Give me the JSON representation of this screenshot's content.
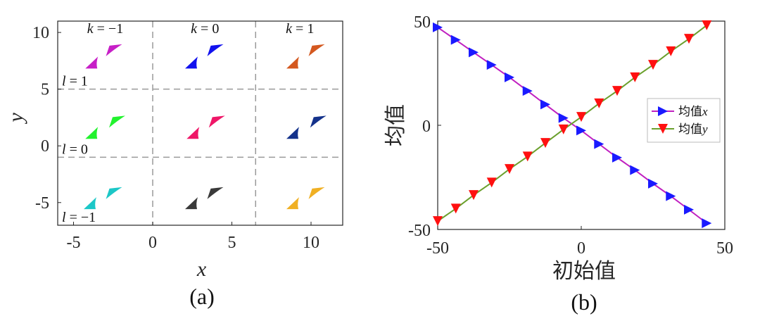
{
  "chart_data": [
    {
      "type": "scatter",
      "caption": "(a)",
      "xlabel": "x",
      "ylabel": "y",
      "xlim": [
        -6,
        12
      ],
      "ylim": [
        -7,
        11
      ],
      "xticks": [
        "-5",
        "0",
        "5",
        "10"
      ],
      "yticks": [
        "-5",
        "0",
        "5",
        "10"
      ],
      "col_labels": [
        "k = −1",
        "k = 0",
        "k = 1"
      ],
      "row_labels": [
        "l = 1",
        "l = 0",
        "l = −1"
      ],
      "vlines": [
        0,
        6.5
      ],
      "hlines": [
        5,
        -1
      ],
      "grid_color": "#9a9a9a",
      "cells": [
        {
          "k": -1,
          "l": 1,
          "color": "#c71fc7",
          "x": [
            -3.9,
            -2.6
          ],
          "y": [
            7.5,
            8.4
          ]
        },
        {
          "k": 0,
          "l": 1,
          "color": "#1212ee",
          "x": [
            2.4,
            3.8
          ],
          "y": [
            7.5,
            8.4
          ]
        },
        {
          "k": 1,
          "l": 1,
          "color": "#d4581f",
          "x": [
            8.8,
            10.2
          ],
          "y": [
            7.5,
            8.4
          ]
        },
        {
          "k": -1,
          "l": 0,
          "color": "#22f22e",
          "x": [
            -3.9,
            -2.4
          ],
          "y": [
            1.3,
            2.1
          ]
        },
        {
          "k": 0,
          "l": 0,
          "color": "#ef1768",
          "x": [
            2.5,
            3.9
          ],
          "y": [
            1.3,
            2.1
          ]
        },
        {
          "k": 1,
          "l": 0,
          "color": "#14328b",
          "x": [
            8.8,
            10.3
          ],
          "y": [
            1.3,
            2.1
          ]
        },
        {
          "k": -1,
          "l": -1,
          "color": "#1cc7c7",
          "x": [
            -4.0,
            -2.6
          ],
          "y": [
            -4.9,
            -4.2
          ]
        },
        {
          "k": 0,
          "l": -1,
          "color": "#3a3a3a",
          "x": [
            2.4,
            3.8
          ],
          "y": [
            -4.9,
            -4.2
          ]
        },
        {
          "k": 1,
          "l": -1,
          "color": "#f0b024",
          "x": [
            8.8,
            10.2
          ],
          "y": [
            -4.9,
            -4.2
          ]
        }
      ]
    },
    {
      "type": "line",
      "caption": "(b)",
      "xlabel": "初始值",
      "ylabel": "均值",
      "xlim": [
        -50,
        50
      ],
      "ylim": [
        -50,
        50
      ],
      "xticks": [
        "-50",
        "0",
        "50"
      ],
      "yticks": [
        "-50",
        "0",
        "50"
      ],
      "legend_position": "right",
      "series": [
        {
          "name": "均值x",
          "line_color": "#c020c0",
          "marker_color": "#1a1aff",
          "marker": "triangle-right",
          "x": [
            -50,
            -43.7,
            -37.5,
            -31.2,
            -25,
            -18.7,
            -12.5,
            -6.2,
            0,
            6.2,
            12.5,
            18.7,
            25,
            31.2,
            37.5,
            43.7
          ],
          "y": [
            47,
            41,
            35,
            29,
            23,
            16.5,
            10,
            3.5,
            -2.5,
            -9,
            -15.5,
            -21.5,
            -28,
            -34,
            -40.5,
            -47
          ]
        },
        {
          "name": "均值y",
          "line_color": "#6aa02c",
          "marker_color": "#ff1010",
          "marker": "triangle-down",
          "x": [
            -50,
            -43.7,
            -37.5,
            -31.2,
            -25,
            -18.7,
            -12.5,
            -6.2,
            0,
            6.2,
            12.5,
            18.7,
            25,
            31.2,
            37.5,
            43.7
          ],
          "y": [
            -46,
            -40,
            -33.5,
            -27.5,
            -21,
            -15,
            -8.5,
            -2,
            4,
            10.5,
            16.5,
            23,
            29,
            35.5,
            41.5,
            48
          ]
        }
      ]
    }
  ]
}
